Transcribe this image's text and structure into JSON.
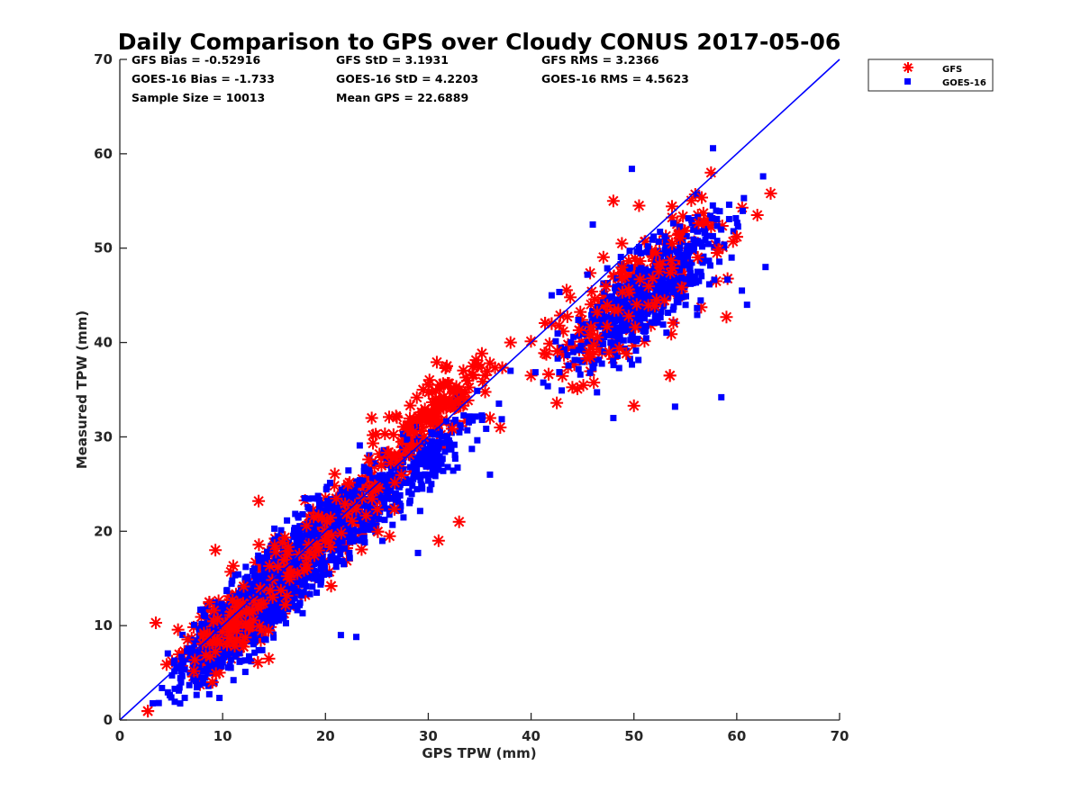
{
  "chart_data": {
    "type": "scatter",
    "title": "Daily Comparison to GPS over Cloudy CONUS 2017-05-06",
    "xlabel": "GPS TPW (mm)",
    "ylabel": "Measured TPW (mm)",
    "xlim": [
      0,
      70
    ],
    "ylim": [
      0,
      70
    ],
    "xticks": [
      "0",
      "10",
      "20",
      "30",
      "40",
      "50",
      "60",
      "70"
    ],
    "yticks": [
      "0",
      "10",
      "20",
      "30",
      "40",
      "50",
      "60",
      "70"
    ],
    "grid": false,
    "legend_position": "outside-top-right",
    "stats": [
      [
        "GFS Bias = -0.52916",
        "GFS StD = 3.1931",
        "GFS RMS = 3.2366"
      ],
      [
        "GOES-16 Bias = -1.733",
        "GOES-16 StD = 4.2203",
        "GOES-16 RMS = 4.5623"
      ],
      [
        "Sample Size = 10013",
        "Mean GPS = 22.6889"
      ]
    ],
    "reference_line": {
      "name": "1:1 line",
      "x": [
        0,
        70
      ],
      "y": [
        0,
        70
      ],
      "color": "#0000ff"
    },
    "series": [
      {
        "name": "GFS",
        "marker": "asterisk",
        "color": "#ff0000",
        "clusters": [
          {
            "cx": 12,
            "cy": 11,
            "sx": 3.0,
            "sy": 3.2,
            "n": 320
          },
          {
            "cx": 20,
            "cy": 20,
            "sx": 3.5,
            "sy": 4.0,
            "n": 260
          },
          {
            "cx": 30,
            "cy": 32,
            "sx": 3.2,
            "sy": 3.0,
            "n": 160
          },
          {
            "cx": 50,
            "cy": 45,
            "sx": 4.5,
            "sy": 5.0,
            "n": 220
          }
        ],
        "points": [
          {
            "x": 3.5,
            "y": 10.3
          },
          {
            "x": 9.3,
            "y": 18.0
          },
          {
            "x": 9.0,
            "y": 4.0
          },
          {
            "x": 13.5,
            "y": 23.2
          },
          {
            "x": 31.0,
            "y": 19.0
          },
          {
            "x": 33.0,
            "y": 21.0
          },
          {
            "x": 31.8,
            "y": 37.5
          },
          {
            "x": 37.0,
            "y": 31.0
          },
          {
            "x": 36.0,
            "y": 32.0
          },
          {
            "x": 42.5,
            "y": 33.6
          },
          {
            "x": 42.0,
            "y": 42.0
          },
          {
            "x": 48.0,
            "y": 55.0
          },
          {
            "x": 50.5,
            "y": 54.5
          },
          {
            "x": 57.5,
            "y": 58.0
          },
          {
            "x": 60.0,
            "y": 51.2
          },
          {
            "x": 62.0,
            "y": 53.5
          },
          {
            "x": 63.3,
            "y": 55.8
          },
          {
            "x": 50.0,
            "y": 33.3
          },
          {
            "x": 53.5,
            "y": 36.5
          },
          {
            "x": 59.0,
            "y": 42.7
          },
          {
            "x": 58.0,
            "y": 46.5
          },
          {
            "x": 24.5,
            "y": 32.0
          },
          {
            "x": 29.5,
            "y": 35.0
          },
          {
            "x": 38.0,
            "y": 40.0
          },
          {
            "x": 40.0,
            "y": 36.5
          },
          {
            "x": 14.5,
            "y": 6.5
          }
        ]
      },
      {
        "name": "GOES-16",
        "marker": "square",
        "color": "#0000ff",
        "clusters": [
          {
            "cx": 12,
            "cy": 10.5,
            "sx": 2.8,
            "sy": 3.0,
            "n": 950
          },
          {
            "cx": 19,
            "cy": 18.5,
            "sx": 3.6,
            "sy": 3.8,
            "n": 750
          },
          {
            "cx": 29,
            "cy": 27,
            "sx": 3.0,
            "sy": 3.2,
            "n": 220
          },
          {
            "cx": 51,
            "cy": 45,
            "sx": 3.5,
            "sy": 4.2,
            "n": 620
          }
        ],
        "points": [
          {
            "x": 49.8,
            "y": 58.4
          },
          {
            "x": 62.8,
            "y": 48.0
          },
          {
            "x": 58.5,
            "y": 34.2
          },
          {
            "x": 54.0,
            "y": 33.2
          },
          {
            "x": 48.0,
            "y": 32.0
          },
          {
            "x": 21.5,
            "y": 9.0
          },
          {
            "x": 23.0,
            "y": 8.8
          },
          {
            "x": 29.0,
            "y": 17.7
          },
          {
            "x": 38.0,
            "y": 37.0
          },
          {
            "x": 36.0,
            "y": 26.0
          },
          {
            "x": 42.0,
            "y": 45.0
          },
          {
            "x": 46.0,
            "y": 52.5
          },
          {
            "x": 59.5,
            "y": 49.0
          },
          {
            "x": 60.5,
            "y": 45.5
          },
          {
            "x": 61.0,
            "y": 44.0
          }
        ]
      }
    ]
  }
}
